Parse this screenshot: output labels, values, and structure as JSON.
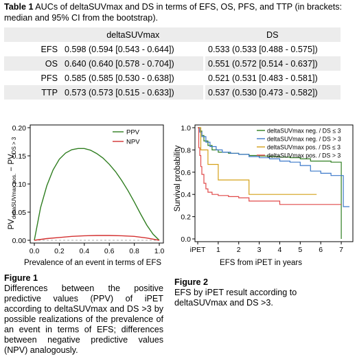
{
  "table1": {
    "label": "Table 1",
    "caption": " AUCs of deltaSUVmax and DS in terms of EFS, OS, PFS, and TTP (in brackets: median and 95% CI from the bootstrap).",
    "col_headers": [
      "deltaSUVmax",
      "DS"
    ],
    "rows": [
      {
        "name": "EFS",
        "delta": "0.598 (0.594 [0.543 - 0.644])",
        "ds": "0.533 (0.533 [0.488 - 0.575])"
      },
      {
        "name": "OS",
        "delta": "0.640 (0.640 [0.578 - 0.704])",
        "ds": "0.551 (0.572 [0.514 - 0.637])"
      },
      {
        "name": "PFS",
        "delta": "0.585 (0.585 [0.530 - 0.638])",
        "ds": "0.521 (0.531 [0.483 - 0.581])"
      },
      {
        "name": "TTP",
        "delta": "0.573 (0.573 [0.515 - 0.633])",
        "ds": "0.537 (0.530 [0.473 - 0.582])"
      }
    ]
  },
  "figure1": {
    "label": "Figure 1",
    "caption": "Differences between the positive predictive values (PPV) of iPET according to deltaSUVmax and DS >3 by possible realizations of the prevalence of an event in terms of EFS; differences between negative predictive values (NPV) analogously."
  },
  "figure2": {
    "label": "Figure 2",
    "caption": "EFS by iPET result according to deltaSUVmax and DS >3."
  },
  "chart_data": [
    {
      "type": "line",
      "title": "",
      "xlabel": "Prevalence of an event in terms of EFS",
      "ylabel_main": "PV",
      "ylabel_sub1": "deltaSUVmax pos.",
      "ylabel_mid": " − PV",
      "ylabel_sub2": "DS > 3",
      "xlim": [
        0,
        1
      ],
      "ylim": [
        0,
        0.2
      ],
      "x_ticks": [
        "0.0",
        "0.2",
        "0.4",
        "0.6",
        "0.8",
        "1.0"
      ],
      "y_ticks": [
        "0.00",
        "0.05",
        "0.10",
        "0.15",
        "0.20"
      ],
      "legend_position": "top-right",
      "series": [
        {
          "name": "PPV",
          "color": "#2e7d1f",
          "x": [
            0,
            0.05,
            0.1,
            0.15,
            0.2,
            0.25,
            0.3,
            0.35,
            0.4,
            0.45,
            0.5,
            0.55,
            0.6,
            0.65,
            0.7,
            0.75,
            0.8,
            0.85,
            0.9,
            0.95,
            1.0
          ],
          "y": [
            0,
            0.058,
            0.097,
            0.125,
            0.144,
            0.155,
            0.161,
            0.163,
            0.163,
            0.16,
            0.154,
            0.146,
            0.135,
            0.122,
            0.106,
            0.088,
            0.068,
            0.047,
            0.027,
            0.011,
            0
          ]
        },
        {
          "name": "NPV",
          "color": "#d32f2f",
          "x": [
            0,
            0.1,
            0.2,
            0.3,
            0.4,
            0.5,
            0.6,
            0.7,
            0.8,
            0.9,
            1.0
          ],
          "y": [
            0,
            0.003,
            0.005,
            0.007,
            0.008,
            0.0085,
            0.0085,
            0.008,
            0.007,
            0.004,
            0
          ]
        }
      ]
    },
    {
      "type": "line",
      "title": "",
      "xlabel": "EFS from iPET in years",
      "ylabel": "Survival probability",
      "xlim": [
        0,
        7.5
      ],
      "ylim": [
        0,
        1.0
      ],
      "x_ticks": [
        {
          "v": 0,
          "t": "iPET"
        },
        {
          "v": 1,
          "t": "1"
        },
        {
          "v": 2,
          "t": "2"
        },
        {
          "v": 3,
          "t": "3"
        },
        {
          "v": 4,
          "t": "4"
        },
        {
          "v": 5,
          "t": "5"
        },
        {
          "v": 6,
          "t": "6"
        },
        {
          "v": 7,
          "t": "7"
        }
      ],
      "y_ticks": [
        "0.0",
        "0.2",
        "0.4",
        "0.6",
        "0.8",
        "1.0"
      ],
      "legend_position": "top-right",
      "series": [
        {
          "name": "deltaSUVmax neg. / DS ≤ 3",
          "color": "#2e7d1f",
          "x": [
            0,
            0.1,
            0.2,
            0.3,
            0.5,
            0.7,
            1.0,
            1.5,
            2.0,
            2.5,
            3.0,
            3.5,
            4.0,
            4.5,
            5.0,
            5.5,
            6.0,
            6.5,
            6.9,
            7.0,
            7.0
          ],
          "y": [
            1.0,
            0.97,
            0.93,
            0.88,
            0.84,
            0.8,
            0.78,
            0.77,
            0.76,
            0.75,
            0.745,
            0.74,
            0.735,
            0.73,
            0.72,
            0.7,
            0.7,
            0.69,
            0.69,
            0.69,
            0.0
          ]
        },
        {
          "name": "deltaSUVmax neg. / DS > 3",
          "color": "#3b78c9",
          "x": [
            0,
            0.1,
            0.2,
            0.4,
            0.6,
            0.9,
            1.2,
            1.6,
            2.0,
            2.5,
            3.0,
            3.5,
            4.0,
            4.5,
            5.0,
            5.5,
            6.0,
            6.5,
            7.0,
            7.1,
            7.1,
            7.4
          ],
          "y": [
            1.0,
            0.96,
            0.92,
            0.87,
            0.83,
            0.8,
            0.78,
            0.77,
            0.76,
            0.74,
            0.73,
            0.72,
            0.7,
            0.69,
            0.66,
            0.61,
            0.59,
            0.57,
            0.57,
            0.57,
            0.29,
            0.29
          ]
        },
        {
          "name": "deltaSUVmax pos. / DS ≤ 3",
          "color": "#d4a017",
          "x": [
            0,
            0.15,
            0.15,
            0.5,
            0.5,
            1.0,
            1.0,
            2.5,
            2.5,
            5.8
          ],
          "y": [
            1.0,
            1.0,
            0.8,
            0.8,
            0.67,
            0.67,
            0.53,
            0.53,
            0.4,
            0.4
          ]
        },
        {
          "name": "deltaSUVmax pos. / DS > 3",
          "color": "#e04848",
          "x": [
            0,
            0.05,
            0.1,
            0.15,
            0.2,
            0.3,
            0.4,
            0.5,
            0.7,
            1.0,
            1.5,
            2.0,
            2.5,
            2.5,
            4.0,
            4.0,
            7.0
          ],
          "y": [
            1.0,
            0.82,
            0.75,
            0.65,
            0.58,
            0.5,
            0.45,
            0.42,
            0.4,
            0.39,
            0.38,
            0.37,
            0.37,
            0.34,
            0.34,
            0.31,
            0.31
          ]
        }
      ]
    }
  ]
}
